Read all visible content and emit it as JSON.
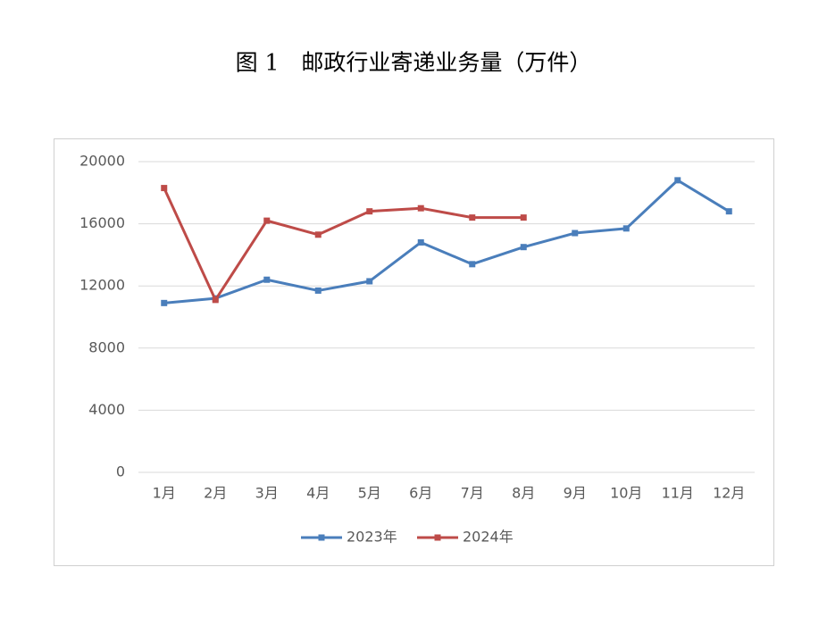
{
  "chart_data": {
    "type": "line",
    "title": "图 1　邮政行业寄递业务量（万件）",
    "categories": [
      "1月",
      "2月",
      "3月",
      "4月",
      "5月",
      "6月",
      "7月",
      "8月",
      "9月",
      "10月",
      "11月",
      "12月"
    ],
    "series": [
      {
        "name": "2023年",
        "color": "#4a7ebb",
        "values": [
          10900,
          11200,
          12400,
          11700,
          12300,
          14800,
          13400,
          14500,
          15400,
          15700,
          18800,
          16800
        ]
      },
      {
        "name": "2024年",
        "color": "#be4b48",
        "values": [
          18300,
          11100,
          16200,
          15300,
          16800,
          17000,
          16400,
          16400,
          null,
          null,
          null,
          null
        ]
      }
    ],
    "ylim": [
      0,
      20000
    ],
    "yticks": [
      0,
      4000,
      8000,
      12000,
      16000,
      20000
    ],
    "grid": true,
    "legend": "bottom"
  }
}
